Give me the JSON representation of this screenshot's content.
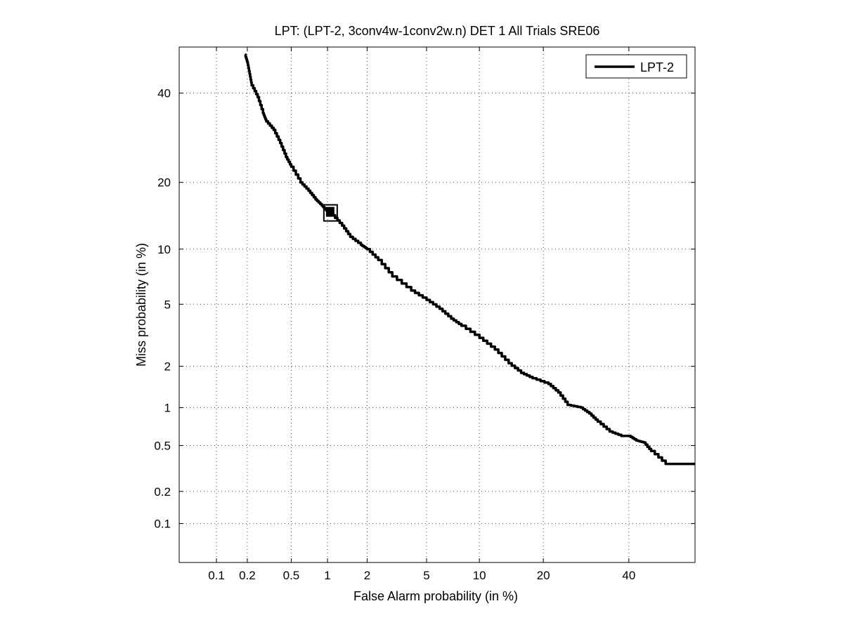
{
  "chart_data": {
    "type": "line",
    "title": "LPT: (LPT-2, 3conv4w-1conv2w.n) DET 1 All Trials SRE06",
    "xlabel": "False Alarm probability (in %)",
    "ylabel": "Miss probability (in %)",
    "x_scale": "probit (normal deviate)",
    "y_scale": "probit (normal deviate)",
    "xlim": [
      0.0409,
      58.0
    ],
    "ylim": [
      0.0409,
      52.0
    ],
    "x_ticks": [
      0.1,
      0.2,
      0.5,
      1,
      2,
      5,
      10,
      20,
      40
    ],
    "x_tick_labels": [
      "0.1",
      "0.2",
      "0.5",
      "1",
      "2",
      "5",
      "10",
      "20",
      "40"
    ],
    "y_ticks": [
      0.1,
      0.2,
      0.5,
      1,
      2,
      5,
      10,
      20,
      40
    ],
    "y_tick_labels": [
      "0.1",
      "0.2",
      "0.5",
      "1",
      "2",
      "5",
      "10",
      "20",
      "40"
    ],
    "grid": true,
    "legend": {
      "position": "top-right",
      "entries": [
        "LPT-2"
      ]
    },
    "series": [
      {
        "name": "LPT-2",
        "color": "#000000",
        "x": [
          0.19,
          0.2,
          0.21,
          0.22,
          0.25,
          0.28,
          0.3,
          0.35,
          0.4,
          0.45,
          0.5,
          0.6,
          0.7,
          0.8,
          0.9,
          1.0,
          1.1,
          1.3,
          1.5,
          1.8,
          2.0,
          2.4,
          3.0,
          4.0,
          5.0,
          6.0,
          7.0,
          8.0,
          10.0,
          12.0,
          14.0,
          16.0,
          18.0,
          21.0,
          23.0,
          25.0,
          28.0,
          30.0,
          32.0,
          35.0,
          38.0,
          40.0,
          42.0,
          44.0,
          46.0,
          50.0,
          58.0
        ],
        "y": [
          50.0,
          48.0,
          45.0,
          42.0,
          39.0,
          35.0,
          33.0,
          31.0,
          28.0,
          25.0,
          23.0,
          20.0,
          18.5,
          17.0,
          16.0,
          15.0,
          14.5,
          13.0,
          11.5,
          10.5,
          10.0,
          8.8,
          7.2,
          6.0,
          5.3,
          4.7,
          4.1,
          3.7,
          3.1,
          2.6,
          2.1,
          1.8,
          1.65,
          1.5,
          1.3,
          1.05,
          1.0,
          0.9,
          0.78,
          0.65,
          0.6,
          0.6,
          0.55,
          0.53,
          0.45,
          0.35,
          0.35
        ]
      }
    ],
    "marker": {
      "shape": "square",
      "x": 1.05,
      "y": 14.8
    }
  }
}
